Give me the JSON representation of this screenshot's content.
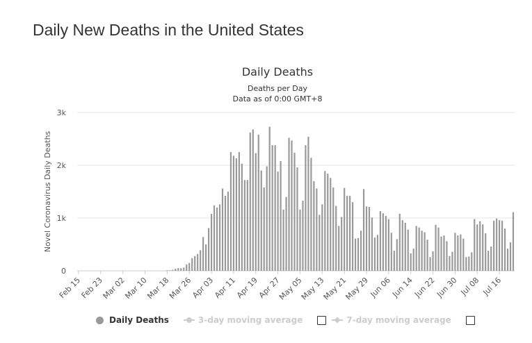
{
  "page_title": "Daily New Deaths in the United States",
  "chart_data": {
    "type": "bar",
    "title": "Daily Deaths",
    "subtitle_lines": [
      "Deaths per Day",
      "Data as of 0:00 GMT+8"
    ],
    "ylabel": "Novel Coronavirus Daily Deaths",
    "xlabel": "",
    "ylim": [
      0,
      3000
    ],
    "y_ticks": [
      {
        "value": 0,
        "label": "0"
      },
      {
        "value": 1000,
        "label": "1k"
      },
      {
        "value": 2000,
        "label": "2k"
      },
      {
        "value": 3000,
        "label": "3k"
      }
    ],
    "x_tick_labels": [
      "Feb 15",
      "Feb 23",
      "Mar 02",
      "Mar 10",
      "Mar 18",
      "Mar 26",
      "Apr 03",
      "Apr 11",
      "Apr 19",
      "Apr 27",
      "May 05",
      "May 13",
      "May 21",
      "May 29",
      "Jun 06",
      "Jun 14",
      "Jun 22",
      "Jun 30",
      "Jul 08",
      "Jul 16"
    ],
    "tick_interval_days": 8,
    "series": [
      {
        "name": "Daily Deaths",
        "color": "#999999",
        "values": [
          0,
          0,
          0,
          0,
          0,
          0,
          0,
          0,
          0,
          0,
          0,
          0,
          0,
          0,
          0,
          0,
          0,
          0,
          0,
          0,
          0,
          0,
          0,
          0,
          0,
          0,
          0,
          0,
          0,
          0,
          0,
          0,
          10,
          10,
          20,
          40,
          50,
          50,
          60,
          120,
          150,
          240,
          280,
          320,
          390,
          640,
          500,
          810,
          1080,
          1240,
          1200,
          1260,
          1560,
          1420,
          1500,
          2250,
          2180,
          2130,
          2250,
          2030,
          1720,
          1720,
          2620,
          2680,
          2230,
          2580,
          1900,
          1580,
          1980,
          2730,
          2380,
          2380,
          1880,
          2080,
          1160,
          1400,
          2520,
          2470,
          2240,
          1960,
          1160,
          1330,
          2380,
          2540,
          2140,
          1700,
          1560,
          1060,
          1260,
          1890,
          1840,
          1760,
          1580,
          1230,
          850,
          1020,
          1570,
          1420,
          1420,
          1300,
          610,
          620,
          760,
          1550,
          1220,
          1210,
          1010,
          630,
          680,
          1130,
          1090,
          1040,
          980,
          720,
          380,
          600,
          1080,
          960,
          910,
          780,
          330,
          420,
          850,
          820,
          760,
          730,
          590,
          260,
          370,
          870,
          820,
          650,
          670,
          560,
          280,
          360,
          720,
          670,
          690,
          610,
          260,
          270,
          350,
          980,
          880,
          940,
          880,
          710,
          380,
          460,
          950,
          990,
          960,
          950,
          800,
          420,
          540,
          1110
        ]
      },
      {
        "name": "3-day moving average",
        "color": "#cccccc",
        "visible": false
      },
      {
        "name": "7-day moving average",
        "color": "#cccccc",
        "visible": false
      }
    ],
    "grid": true,
    "legend_position": "bottom"
  }
}
